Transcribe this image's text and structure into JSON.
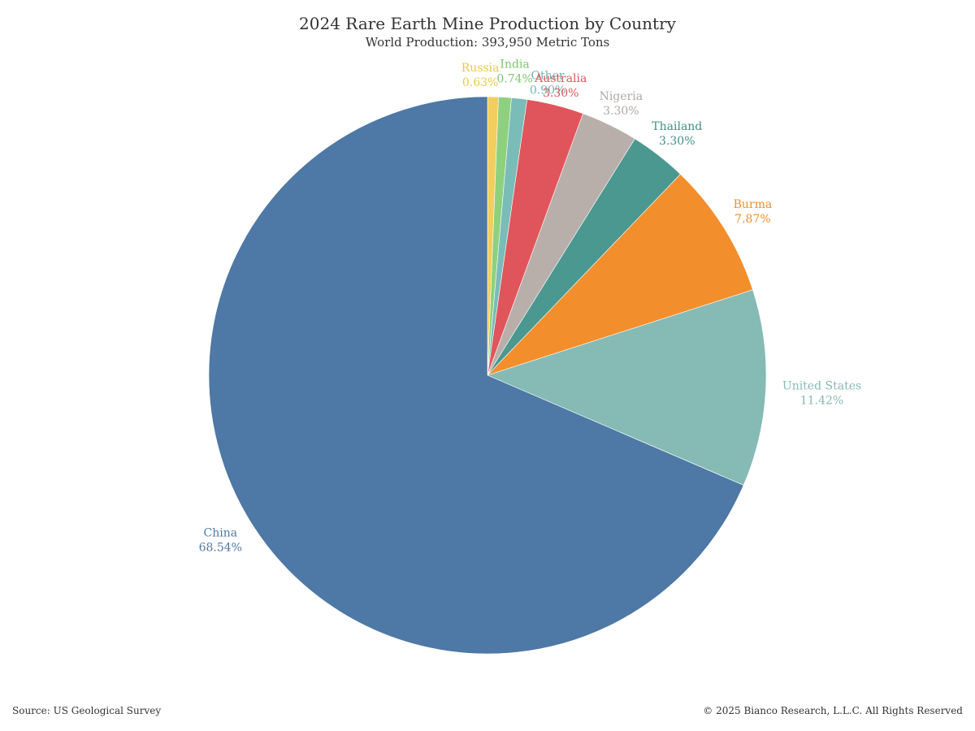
{
  "chart_data": {
    "type": "pie",
    "title": "2024 Rare Earth Mine Production by Country",
    "subtitle": "World Production: 393,950 Metric Tons",
    "categories": [
      "Russia",
      "India",
      "Other",
      "Australia",
      "Nigeria",
      "Thailand",
      "Burma",
      "United States",
      "China"
    ],
    "values": [
      0.63,
      0.74,
      0.9,
      3.3,
      3.3,
      3.3,
      7.87,
      11.42,
      68.54
    ],
    "value_labels": [
      "0.63%",
      "0.74%",
      "0.90%",
      "3.30%",
      "3.30%",
      "3.30%",
      "7.87%",
      "11.42%",
      "68.54%"
    ],
    "colors": [
      "#F2CE5E",
      "#8DD17E",
      "#7ABCB8",
      "#E0555B",
      "#B8AEAA",
      "#4A9890",
      "#F28E2C",
      "#85BAB5",
      "#4E78A5"
    ],
    "label_colors": [
      "#EDC948",
      "#7DC86E",
      "#6FB3B0",
      "#E15759",
      "#B0A8A5",
      "#3E8F87",
      "#F28E2B",
      "#85BAB5",
      "#4E79A7"
    ],
    "start_angle_deg": 0,
    "direction": "clockwise"
  },
  "footer": {
    "source": "Source: US Geological Survey",
    "copyright": "© 2025 Bianco Research, L.L.C. All Rights Reserved"
  }
}
